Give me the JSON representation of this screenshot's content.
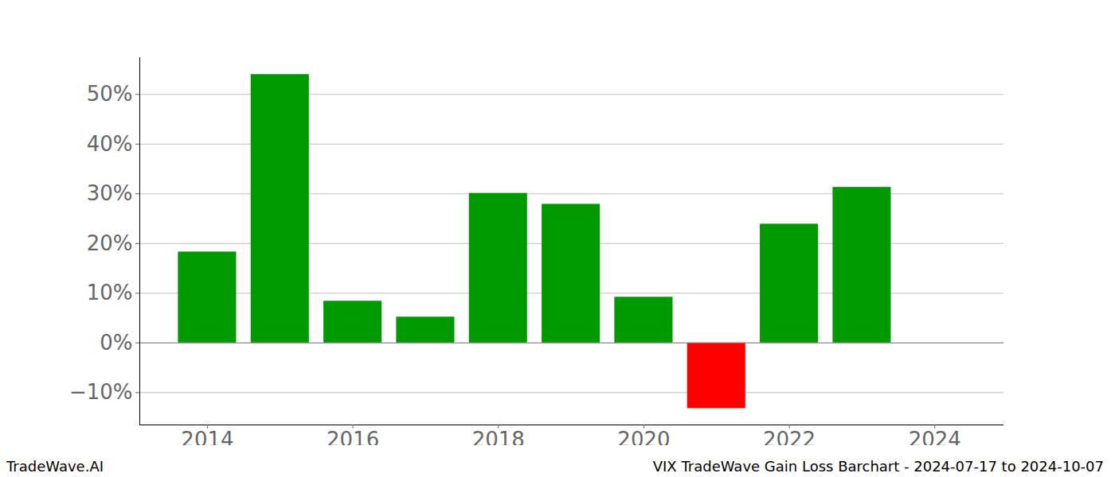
{
  "chart_data": {
    "type": "bar",
    "footer_left": "TradeWave.AI",
    "title": "VIX TradeWave Gain Loss Barchart - 2024-07-17 to 2024-10-07",
    "x": [
      2014,
      2015,
      2016,
      2017,
      2018,
      2019,
      2020,
      2021,
      2022,
      2023
    ],
    "values": [
      18.3,
      54.0,
      8.4,
      5.2,
      30.1,
      27.9,
      9.2,
      -13.2,
      23.9,
      31.3
    ],
    "colors": [
      "#009900",
      "#009900",
      "#009900",
      "#009900",
      "#009900",
      "#009900",
      "#009900",
      "#ff0000",
      "#009900",
      "#009900"
    ],
    "xlim": [
      2013.07,
      2024.95
    ],
    "xticks": [
      2014,
      2016,
      2018,
      2020,
      2022,
      2024
    ],
    "ylim": [
      -16.5,
      57.4
    ],
    "yticks": [
      {
        "value": -10,
        "label": "−10%"
      },
      {
        "value": 0,
        "label": "0%"
      },
      {
        "value": 10,
        "label": "10%"
      },
      {
        "value": 20,
        "label": "20%"
      },
      {
        "value": 30,
        "label": "30%"
      },
      {
        "value": 40,
        "label": "40%"
      },
      {
        "value": 50,
        "label": "50%"
      }
    ],
    "grid": true
  }
}
